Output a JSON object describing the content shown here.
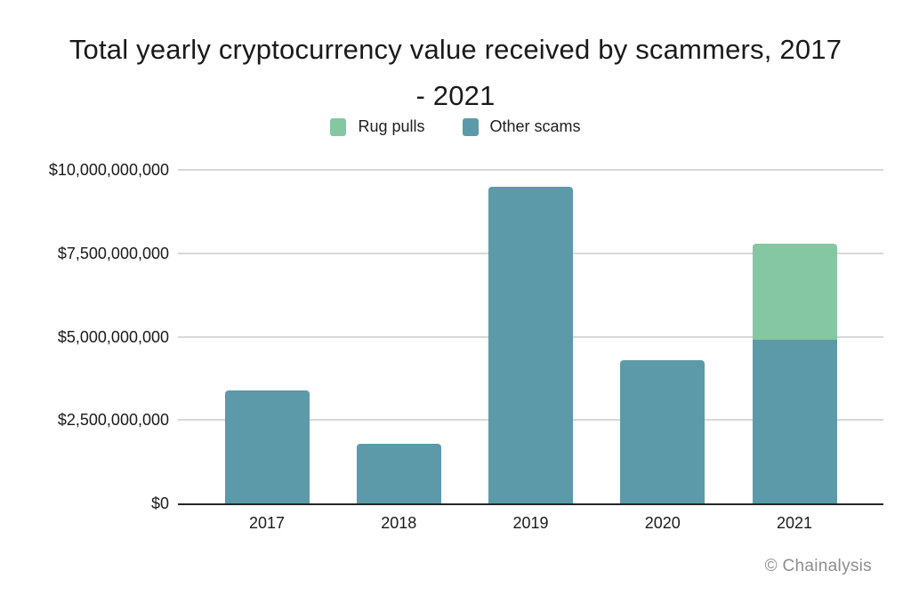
{
  "chart_data": {
    "type": "bar",
    "stacked": true,
    "title": "Total yearly cryptocurrency value received by scammers, 2017 - 2021",
    "title_lines": [
      "Total yearly cryptocurrency value received by scammers, 2017",
      "- 2021"
    ],
    "categories": [
      "2017",
      "2018",
      "2019",
      "2020",
      "2021"
    ],
    "unit": "USD billions",
    "series": [
      {
        "name": "Rug pulls",
        "color": "#85C7A2",
        "values": [
          0,
          0,
          0,
          0,
          2.9
        ]
      },
      {
        "name": "Other scams",
        "color": "#5C9AA9",
        "values": [
          3.4,
          1.8,
          9.5,
          4.3,
          4.9
        ]
      }
    ],
    "totals": [
      3.4,
      1.8,
      9.5,
      4.3,
      7.8
    ],
    "xlabel": "",
    "ylabel": "",
    "y_axis": {
      "min_billions": 0,
      "max_billions": 10,
      "tick_interval_billions": 2.5,
      "tick_labels_bottom_to_top": [
        "$0",
        "$2,500,000,000",
        "$5,000,000,000",
        "$7,500,000,000",
        "$10,000,000,000"
      ]
    },
    "grid": "horizontal",
    "legend_position": "top-center",
    "attribution": "© Chainalysis"
  }
}
